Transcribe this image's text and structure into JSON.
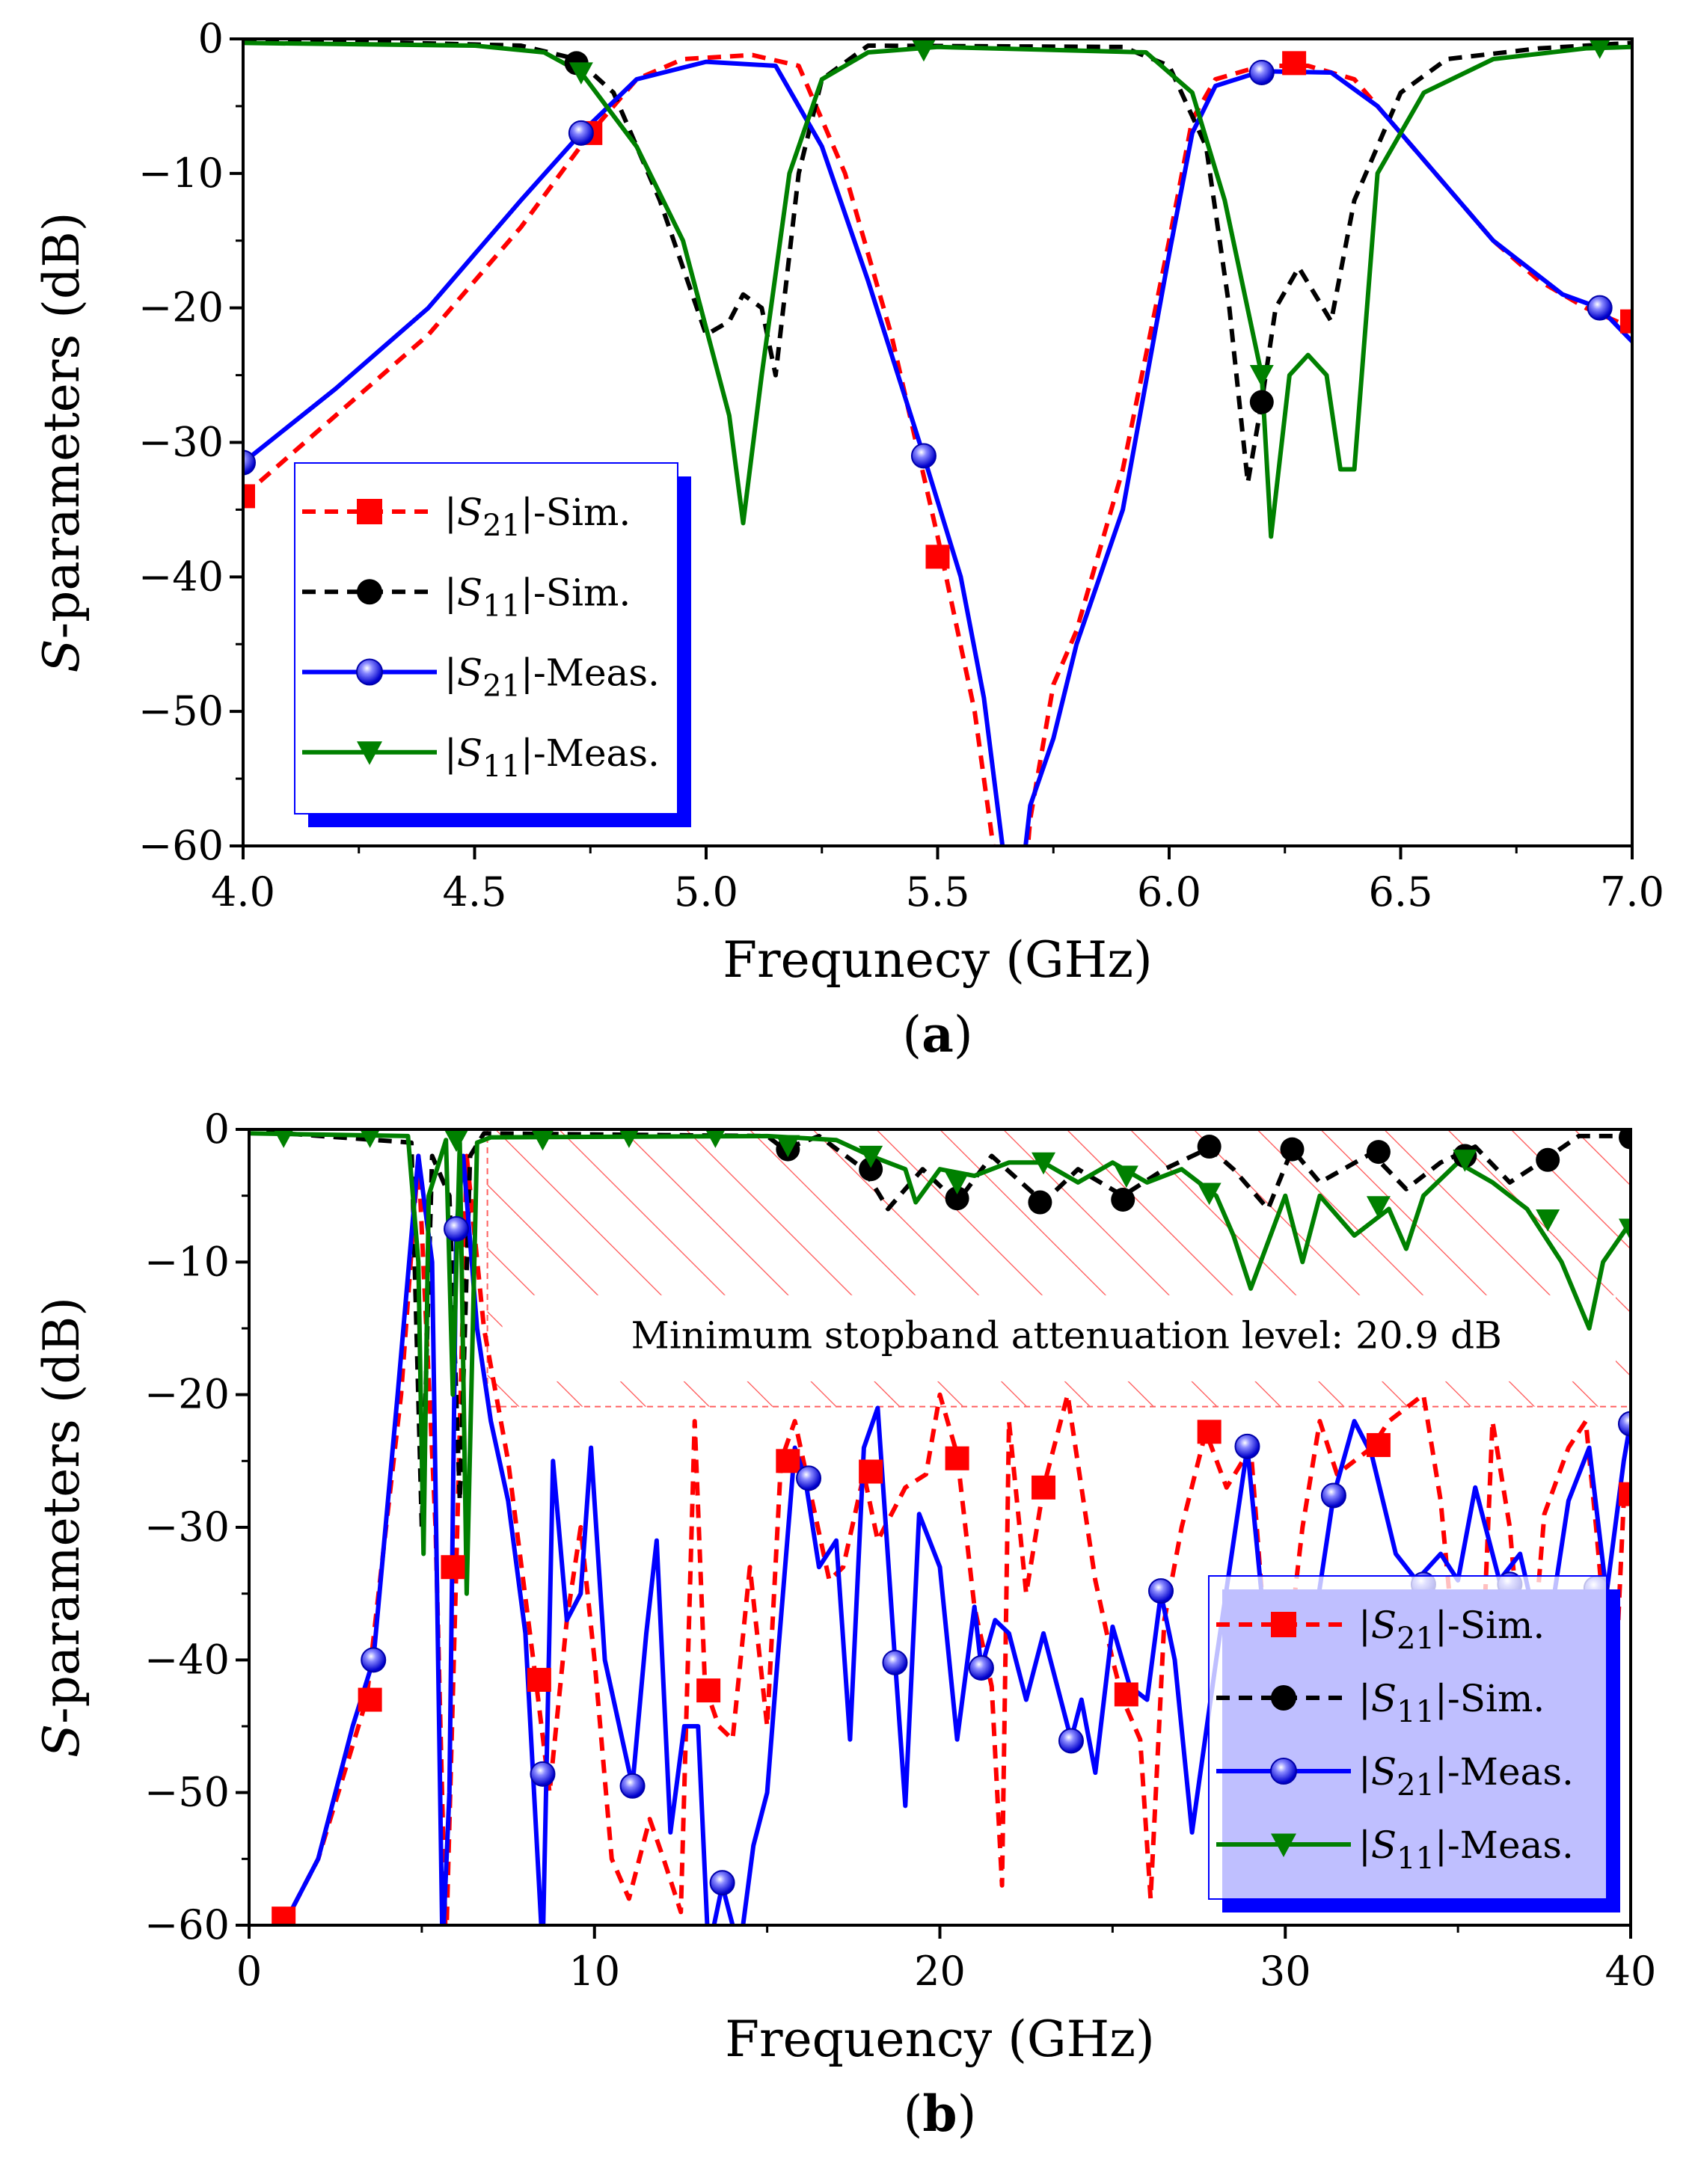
{
  "chart_data": [
    {
      "id": "a",
      "type": "line",
      "caption": "a",
      "xlabel": "Frequnecy (GHz)",
      "ylabel_italic": "S",
      "ylabel_rest": "-parameters (dB)",
      "xlim": [
        4.0,
        7.0
      ],
      "ylim": [
        -60,
        0
      ],
      "xticks": [
        4.0,
        4.5,
        5.0,
        5.5,
        6.0,
        6.5,
        7.0
      ],
      "xtick_labels": [
        "4.0",
        "4.5",
        "5.0",
        "5.5",
        "6.0",
        "6.5",
        "7.0"
      ],
      "yticks": [
        0,
        -10,
        -20,
        -30,
        -40,
        -50,
        -60
      ],
      "ytick_labels": [
        "0",
        "−10",
        "−20",
        "−30",
        "−40",
        "−50",
        "−60"
      ],
      "legend_position": "lower-left",
      "series": [
        {
          "key": "s21sim",
          "label_sym": "S",
          "label_sub": "21",
          "label_suffix": "-Sim.",
          "color": "#ff0000",
          "dash": true,
          "marker": "square",
          "x": [
            4.0,
            4.2,
            4.4,
            4.6,
            4.75,
            4.85,
            4.95,
            5.1,
            5.2,
            5.3,
            5.4,
            5.5,
            5.58,
            5.62,
            5.63,
            5.69,
            5.7,
            5.75,
            5.8,
            5.9,
            6.0,
            6.05,
            6.1,
            6.2,
            6.3,
            6.4,
            6.5,
            6.6,
            6.7,
            6.8,
            6.9,
            7.0
          ],
          "y": [
            -34,
            -28,
            -22,
            -14,
            -7,
            -3,
            -1.5,
            -1.2,
            -2,
            -10,
            -22,
            -37,
            -50,
            -60,
            -62,
            -62,
            -58,
            -48,
            -44,
            -32,
            -15,
            -6,
            -3,
            -2,
            -2,
            -3,
            -7,
            -11,
            -15,
            -18,
            -20,
            -21.5
          ],
          "markers_x": [
            4.0,
            4.75,
            5.5,
            6.27,
            7.0
          ],
          "markers_y": [
            -34,
            -7,
            -38.5,
            -1.8,
            -21
          ]
        },
        {
          "key": "s11sim",
          "label_sym": "S",
          "label_sub": "11",
          "label_suffix": "-Sim.",
          "color": "#000000",
          "dash": true,
          "marker": "circle",
          "x": [
            4.0,
            4.6,
            4.72,
            4.8,
            4.9,
            5.0,
            5.05,
            5.08,
            5.12,
            5.15,
            5.2,
            5.25,
            5.35,
            5.9,
            6.0,
            6.08,
            6.13,
            6.17,
            6.2,
            6.23,
            6.28,
            6.35,
            6.4,
            6.5,
            6.6,
            6.8,
            7.0
          ],
          "y": [
            0,
            -0.5,
            -1.5,
            -4,
            -12,
            -22,
            -21,
            -19,
            -20,
            -25,
            -10,
            -3,
            -0.5,
            -0.6,
            -2,
            -8,
            -20,
            -33,
            -27,
            -20,
            -17,
            -21,
            -12,
            -4,
            -1.5,
            -0.7,
            -0.3
          ],
          "markers_x": [
            4.72,
            6.2
          ],
          "markers_y": [
            -1.8,
            -27
          ]
        },
        {
          "key": "s21meas",
          "label_sym": "S",
          "label_sub": "21",
          "label_suffix": "-Meas.",
          "color": "#0000ff",
          "dash": false,
          "marker": "ball",
          "x": [
            4.0,
            4.2,
            4.4,
            4.6,
            4.73,
            4.85,
            5.0,
            5.15,
            5.25,
            5.35,
            5.47,
            5.55,
            5.6,
            5.64,
            5.65,
            5.68,
            5.69,
            5.7,
            5.75,
            5.8,
            5.9,
            6.0,
            6.05,
            6.1,
            6.2,
            6.35,
            6.45,
            6.55,
            6.7,
            6.85,
            6.93,
            7.0
          ],
          "y": [
            -31.5,
            -26,
            -20,
            -12,
            -7,
            -3,
            -1.7,
            -2,
            -8,
            -18,
            -31,
            -40,
            -49,
            -60,
            -62,
            -62,
            -60,
            -57,
            -52,
            -45,
            -35,
            -16,
            -7,
            -3.5,
            -2.4,
            -2.5,
            -5,
            -9,
            -15,
            -19,
            -20,
            -22.5
          ],
          "markers_x": [
            4.0,
            4.73,
            5.47,
            6.2,
            6.93
          ],
          "markers_y": [
            -31.5,
            -7,
            -31,
            -2.5,
            -20
          ]
        },
        {
          "key": "s11meas",
          "label_sym": "S",
          "label_sub": "11",
          "label_suffix": "-Meas.",
          "color": "#008000",
          "dash": false,
          "marker": "triangle",
          "x": [
            4.0,
            4.5,
            4.65,
            4.73,
            4.85,
            4.95,
            5.05,
            5.08,
            5.12,
            5.18,
            5.25,
            5.35,
            5.5,
            5.95,
            6.05,
            6.12,
            6.2,
            6.22,
            6.26,
            6.3,
            6.34,
            6.37,
            6.4,
            6.45,
            6.55,
            6.7,
            6.9,
            7.0
          ],
          "y": [
            -0.3,
            -0.5,
            -1,
            -2.5,
            -8,
            -15,
            -28,
            -36,
            -25,
            -10,
            -3,
            -1,
            -0.6,
            -1,
            -4,
            -12,
            -25,
            -37,
            -25,
            -23.5,
            -25,
            -32,
            -32,
            -10,
            -4,
            -1.5,
            -0.7,
            -0.6
          ],
          "markers_x": [
            4.73,
            5.47,
            6.2,
            6.93
          ],
          "markers_y": [
            -2.5,
            -0.8,
            -25,
            -0.6
          ]
        }
      ]
    },
    {
      "id": "b",
      "type": "line",
      "caption": "b",
      "xlabel": "Frequency (GHz)",
      "ylabel_italic": "S",
      "ylabel_rest": "-parameters (dB)",
      "xlim": [
        0,
        40
      ],
      "ylim": [
        -60,
        0
      ],
      "xticks": [
        0,
        10,
        20,
        30,
        40
      ],
      "xtick_labels": [
        "0",
        "10",
        "20",
        "30",
        "40"
      ],
      "yticks": [
        0,
        -10,
        -20,
        -30,
        -40,
        -50,
        -60
      ],
      "ytick_labels": [
        "0",
        "−10",
        "−20",
        "−30",
        "−40",
        "−50",
        "−60"
      ],
      "legend_position": "lower-right",
      "annotation": "Minimum stopband attenuation level: 20.9 dB",
      "stopband": {
        "x_start": 6.9,
        "x_end": 40,
        "level": -20.9
      },
      "series": [
        {
          "key": "s21sim",
          "label_sym": "S",
          "label_sub": "21",
          "label_suffix": "-Sim.",
          "color": "#ff0000",
          "dash": true,
          "marker": "square",
          "x": [
            1,
            2,
            3.4,
            4.4,
            4.9,
            5.4,
            5.7,
            6.0,
            6.3,
            6.8,
            7.5,
            8.3,
            8.7,
            9.2,
            9.6,
            10.0,
            10.5,
            11,
            11.6,
            12,
            12.5,
            12.9,
            13.2,
            13.6,
            14,
            14.5,
            15,
            15.4,
            15.8,
            16.3,
            16.8,
            17.2,
            17.8,
            18.2,
            19,
            19.6,
            20,
            20.5,
            21,
            21.5,
            21.8,
            22,
            22.5,
            23,
            23.7,
            24.5,
            25,
            25.3,
            25.8,
            26.1,
            26.5,
            27,
            27.7,
            28.3,
            29,
            29.7,
            30.5,
            31,
            31.5,
            32.5,
            33,
            34,
            34.5,
            35,
            35.6,
            36,
            36.5,
            37,
            37.5,
            38.2,
            38.7,
            39,
            39.5,
            39.8,
            40
          ],
          "y": [
            -60,
            -55,
            -43,
            -20,
            -2,
            -30,
            -62,
            -33,
            -2,
            -15,
            -25,
            -41.5,
            -50,
            -37,
            -30,
            -40,
            -55,
            -58,
            -52,
            -55,
            -59,
            -22,
            -42,
            -45,
            -46,
            -33,
            -45,
            -25,
            -22,
            -28,
            -34,
            -33,
            -26,
            -31,
            -27,
            -26,
            -20,
            -24.5,
            -36,
            -42,
            -57,
            -22,
            -35,
            -27,
            -20,
            -34,
            -40,
            -43,
            -46,
            -58,
            -37,
            -30,
            -22.8,
            -27,
            -24,
            -48,
            -30,
            -22,
            -26,
            -24,
            -22,
            -20,
            -28,
            -42,
            -47,
            -22,
            -30,
            -45,
            -29,
            -24,
            -22,
            -30,
            -45,
            -28,
            -27
          ],
          "markers_x": [
            1,
            3.5,
            5.9,
            8.4,
            13.3,
            15.6,
            18,
            20.5,
            23,
            25.4,
            27.8,
            32.7,
            35.2,
            40
          ],
          "markers_y": [
            -59.5,
            -43,
            -33,
            -41.5,
            -42.3,
            -25,
            -25.8,
            -24.8,
            -27,
            -42.6,
            -22.8,
            -23.8,
            -45.5,
            -27.5
          ]
        },
        {
          "key": "s11sim",
          "label_sym": "S",
          "label_sub": "11",
          "label_suffix": "-Sim.",
          "color": "#000000",
          "dash": true,
          "marker": "circle",
          "x": [
            0.5,
            4.7,
            5.0,
            5.3,
            5.8,
            6.1,
            6.4,
            6.8,
            15,
            15.5,
            16.5,
            17.8,
            18.5,
            19.5,
            20.5,
            21.5,
            23,
            24,
            25.3,
            26.5,
            27.8,
            28.5,
            29.5,
            30.2,
            31,
            32.5,
            33.5,
            34.5,
            35.5,
            36.5,
            37.5,
            38.5,
            40
          ],
          "y": [
            -0.2,
            -1,
            -30,
            -2,
            -5,
            -28,
            -2,
            -0.3,
            -0.5,
            -1.5,
            -0.5,
            -3,
            -6,
            -3,
            -5.5,
            -2,
            -5.5,
            -3,
            -5,
            -3,
            -1.4,
            -3,
            -6,
            -1.5,
            -4,
            -1.8,
            -4.5,
            -2.5,
            -1.3,
            -4,
            -2.3,
            -0.5,
            -0.5
          ],
          "markers_x": [
            15.6,
            18,
            20.5,
            22.9,
            25.3,
            27.8,
            30.2,
            32.7,
            35.2,
            37.6,
            40
          ],
          "markers_y": [
            -1.5,
            -3,
            -5.2,
            -5.5,
            -5.3,
            -1.3,
            -1.5,
            -1.7,
            -2,
            -2.3,
            -0.6
          ]
        },
        {
          "key": "s21meas",
          "label_sym": "S",
          "label_sub": "21",
          "label_suffix": "-Meas.",
          "color": "#0000ff",
          "dash": false,
          "marker": "ball",
          "x": [
            1,
            2,
            3,
            3.6,
            4.3,
            4.9,
            5.3,
            5.6,
            5.8,
            6.0,
            6.2,
            6.6,
            7,
            7.5,
            8,
            8.5,
            8.8,
            9.2,
            9.6,
            9.9,
            10.3,
            11.1,
            11.5,
            11.8,
            12.2,
            12.6,
            13,
            13.3,
            13.7,
            14.2,
            14.6,
            15.0,
            15.3,
            15.8,
            16.1,
            16.5,
            17,
            17.4,
            17.8,
            18.2,
            18.7,
            19.0,
            19.4,
            20,
            20.5,
            21,
            21.2,
            21.6,
            22,
            22.5,
            23,
            23.8,
            24.1,
            24.5,
            25,
            25.5,
            26,
            26.4,
            26.8,
            27.3,
            28,
            28.9,
            29.5,
            30,
            30.8,
            31.4,
            32,
            32.5,
            33.2,
            33.8,
            34.5,
            35,
            35.5,
            36.2,
            36.8,
            37.5,
            38.2,
            38.8,
            39.3,
            39.8,
            40
          ],
          "y": [
            -60,
            -55,
            -45,
            -40,
            -20,
            -2,
            -10,
            -62,
            -50,
            -7.5,
            -2,
            -15,
            -22,
            -28,
            -38,
            -62,
            -25,
            -37,
            -35,
            -24,
            -40,
            -49.5,
            -38,
            -31,
            -53,
            -45,
            -45,
            -62,
            -57,
            -62,
            -54,
            -50,
            -40,
            -24,
            -26.3,
            -33,
            -31,
            -46,
            -24,
            -21,
            -40,
            -51,
            -29,
            -33,
            -46,
            -36,
            -40.6,
            -37,
            -38,
            -43,
            -38,
            -46,
            -43,
            -48.5,
            -37.5,
            -42,
            -43,
            -35,
            -40,
            -53,
            -40,
            -24,
            -40,
            -45,
            -38,
            -27.6,
            -22,
            -24.5,
            -32,
            -34,
            -32,
            -34,
            -27,
            -34,
            -32,
            -40,
            -28,
            -24,
            -35,
            -25,
            -22
          ],
          "markers_x": [
            3.6,
            6.0,
            8.5,
            11.1,
            13.7,
            16.2,
            18.7,
            21.2,
            23.8,
            26.4,
            28.9,
            31.4,
            34,
            36.5,
            39,
            40
          ],
          "markers_y": [
            -40,
            -7.5,
            -48.6,
            -49.5,
            -56.8,
            -26.3,
            -40.2,
            -40.6,
            -46.1,
            -34.8,
            -23.9,
            -27.6,
            -34.3,
            -34.3,
            -34.6,
            -22.2
          ]
        },
        {
          "key": "s11meas",
          "label_sym": "S",
          "label_sub": "11",
          "label_suffix": "-Meas.",
          "color": "#008000",
          "dash": false,
          "marker": "triangle",
          "x": [
            0,
            4.6,
            4.9,
            5.05,
            5.2,
            5.7,
            5.9,
            6.1,
            6.3,
            6.6,
            7,
            15,
            17,
            18,
            19,
            19.3,
            20,
            21,
            22,
            23,
            24,
            25,
            26,
            27,
            28,
            28.5,
            29,
            30,
            30.5,
            31,
            32,
            33,
            33.5,
            34,
            35,
            36,
            37,
            38,
            38.8,
            39.2,
            40
          ],
          "y": [
            -0.3,
            -0.5,
            -10,
            -32,
            -5,
            -0.8,
            -20,
            -1,
            -35,
            -1,
            -0.6,
            -0.5,
            -0.8,
            -2,
            -3,
            -5.5,
            -3,
            -3.5,
            -2.5,
            -2.5,
            -4,
            -2.5,
            -4,
            -3,
            -5,
            -8,
            -12,
            -5,
            -10,
            -5,
            -8,
            -6,
            -9,
            -5,
            -2.5,
            -4,
            -6,
            -10,
            -15,
            -10,
            -7
          ],
          "markers_x": [
            1,
            3.5,
            6,
            8.5,
            11,
            13.5,
            15.6,
            18,
            20.5,
            23,
            25.4,
            27.8,
            32.7,
            35.2,
            37.6,
            40
          ],
          "markers_y": [
            -0.5,
            -0.5,
            -0.8,
            -0.7,
            -0.5,
            -0.5,
            -1.2,
            -2,
            -4,
            -2.5,
            -3.5,
            -4.8,
            -5.8,
            -2.3,
            -6.8,
            -7.5
          ]
        }
      ]
    }
  ]
}
